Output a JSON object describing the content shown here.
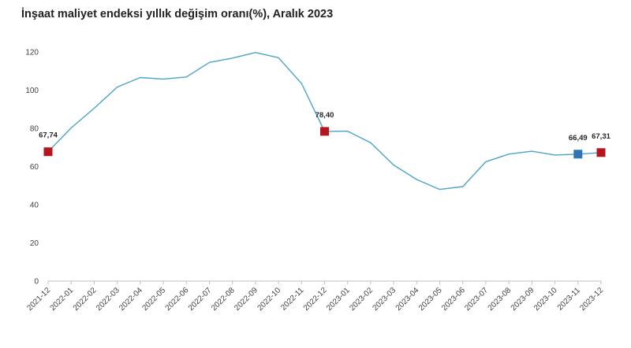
{
  "chart_data": {
    "type": "line",
    "title": "İnşaat maliyet endeksi yıllık değişim oranı(%), Aralık 2023",
    "xlabel": "",
    "ylabel": "",
    "ylim": [
      0,
      120
    ],
    "yticks": [
      0,
      20,
      40,
      60,
      80,
      100,
      120
    ],
    "grid": false,
    "legend": "none",
    "categories": [
      "2021-12",
      "2022-01",
      "2022-02",
      "2022-03",
      "2022-04",
      "2022-05",
      "2022-06",
      "2022-07",
      "2022-08",
      "2022-09",
      "2022-10",
      "2022-11",
      "2022-12",
      "2023-01",
      "2023-02",
      "2023-03",
      "2023-04",
      "2023-05",
      "2023-06",
      "2023-07",
      "2023-08",
      "2023-09",
      "2023-10",
      "2023-11",
      "2023-12"
    ],
    "series": [
      {
        "color": "#4ba3c7",
        "values": [
          67.74,
          80.2,
          90.5,
          101.6,
          106.6,
          105.8,
          106.9,
          114.5,
          116.8,
          119.7,
          117.0,
          103.5,
          78.4,
          78.5,
          72.5,
          60.8,
          53.2,
          48.0,
          49.5,
          62.5,
          66.5,
          68.0,
          66.0,
          66.49,
          67.31
        ]
      }
    ],
    "highlights": [
      {
        "index": 0,
        "label": "67,74",
        "color": "#b5161d"
      },
      {
        "index": 12,
        "label": "78,40",
        "color": "#b5161d"
      },
      {
        "index": 23,
        "label": "66,49",
        "color": "#2e75b6"
      },
      {
        "index": 24,
        "label": "67,31",
        "color": "#b5161d"
      }
    ]
  }
}
